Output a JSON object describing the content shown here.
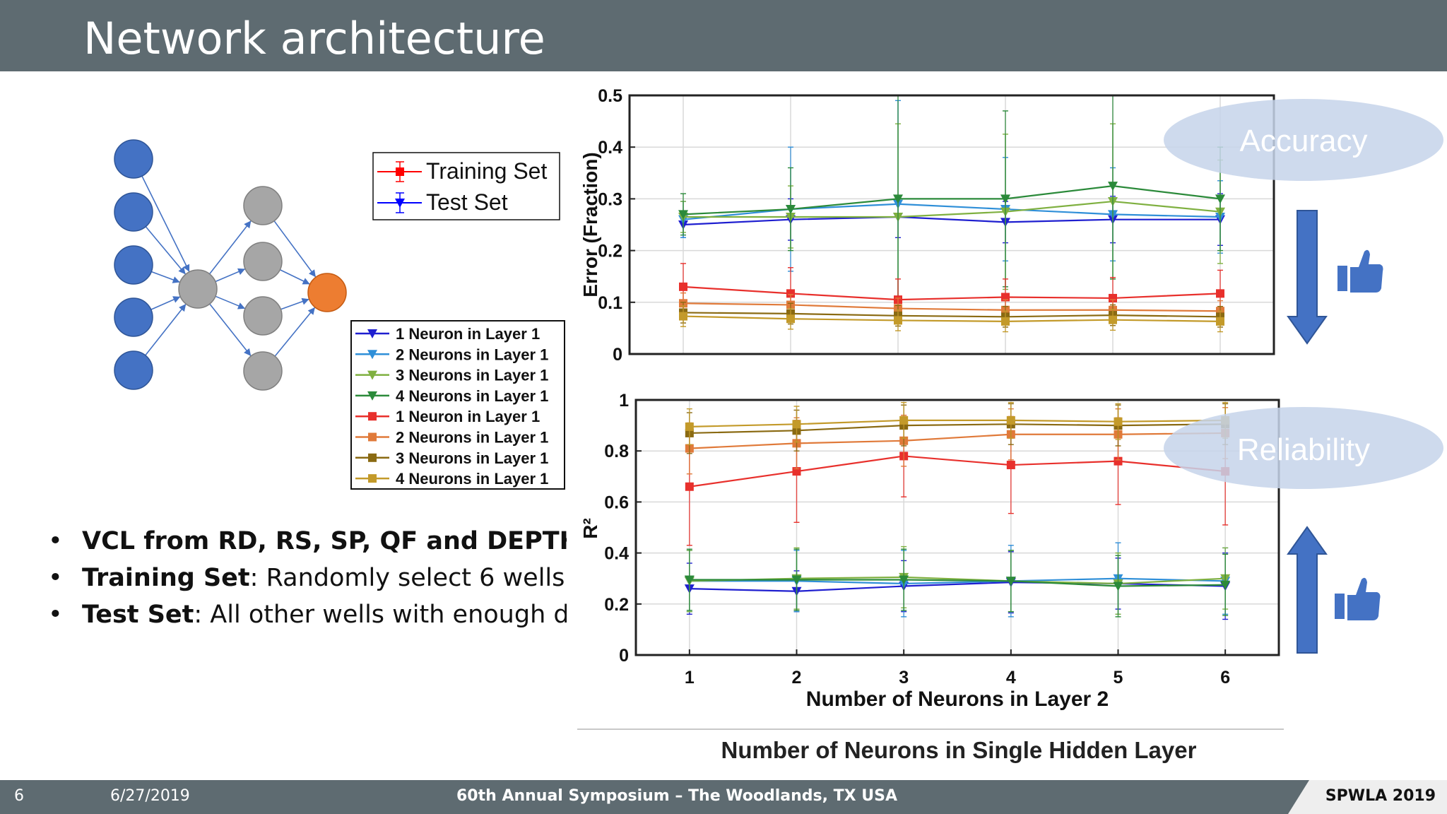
{
  "slide": {
    "title": "Network architecture",
    "page_number": "6",
    "date": "6/27/2019",
    "conference": "60th Annual Symposium – The Woodlands, TX USA",
    "brand": "SPWLA 2019"
  },
  "bullets": [
    {
      "bold": "VCL from RD, RS, SP, QF and DEPTH",
      "text": ""
    },
    {
      "bold": "Training Set",
      "text": ": Randomly select 6 wells"
    },
    {
      "bold": "Test Set",
      "text": ": All other wells with enough da"
    }
  ],
  "callouts": {
    "accuracy": "Accuracy",
    "reliability": "Reliability",
    "down_arrow_color": "#4472c4",
    "up_arrow_color": "#4472c4",
    "thumbs_icon": "thumbs-up-icon"
  },
  "diagram": {
    "input_color": "#4472c4",
    "hidden_color": "#a6a6a6",
    "output_color": "#ed7d31",
    "input_nodes": 5,
    "layer1_nodes": 1,
    "layer2_nodes": 4,
    "output_nodes": 1
  },
  "legend_small": [
    {
      "label": "Training Set",
      "color": "#ff0000",
      "marker": "square"
    },
    {
      "label": "Test Set",
      "color": "#0000ff",
      "marker": "triangle-down"
    }
  ],
  "chart_data": [
    {
      "type": "line",
      "x": [
        1,
        2,
        3,
        4,
        5,
        6
      ],
      "xlim": [
        0.5,
        6.5
      ],
      "ylim": [
        0,
        0.5
      ],
      "yticks": [
        0,
        0.1,
        0.2,
        0.3,
        0.4,
        0.5
      ],
      "ylabel": "Error (Fraction)",
      "xlabel": "",
      "grid": true,
      "series": [
        {
          "name": "1 Neuron in Layer 1",
          "color": "#1f1fd0",
          "marker": "triangle-down",
          "values": [
            0.25,
            0.26,
            0.265,
            0.255,
            0.26,
            0.26
          ],
          "err": [
            0.025,
            0.04,
            0.04,
            0.04,
            0.045,
            0.05
          ]
        },
        {
          "name": "2 Neurons in Layer 1",
          "color": "#2f8fd8",
          "marker": "triangle-down",
          "values": [
            0.26,
            0.28,
            0.29,
            0.28,
            0.27,
            0.265
          ],
          "err": [
            0.035,
            0.12,
            0.2,
            0.1,
            0.09,
            0.07
          ]
        },
        {
          "name": "3 Neurons in Layer 1",
          "color": "#7fb040",
          "marker": "triangle-down",
          "values": [
            0.265,
            0.265,
            0.265,
            0.275,
            0.295,
            0.275
          ],
          "err": [
            0.03,
            0.06,
            0.18,
            0.15,
            0.15,
            0.1
          ]
        },
        {
          "name": "4 Neurons in Layer 1",
          "color": "#2b8a3a",
          "marker": "triangle-down",
          "values": [
            0.27,
            0.28,
            0.3,
            0.3,
            0.325,
            0.3
          ],
          "err": [
            0.04,
            0.08,
            0.22,
            0.17,
            0.18,
            0.1
          ]
        },
        {
          "name": "1 Neuron in Layer 1",
          "color": "#e8302c",
          "marker": "square",
          "values": [
            0.13,
            0.117,
            0.105,
            0.11,
            0.108,
            0.117
          ],
          "err": [
            0.045,
            0.05,
            0.04,
            0.035,
            0.04,
            0.045
          ]
        },
        {
          "name": "2 Neurons in Layer 1",
          "color": "#e07a3a",
          "marker": "square",
          "values": [
            0.098,
            0.095,
            0.088,
            0.085,
            0.085,
            0.083
          ],
          "err": [
            0.02,
            0.02,
            0.02,
            0.02,
            0.02,
            0.02
          ]
        },
        {
          "name": "3 Neurons in Layer 1",
          "color": "#8a6a12",
          "marker": "square",
          "values": [
            0.08,
            0.078,
            0.074,
            0.072,
            0.075,
            0.072
          ],
          "err": [
            0.02,
            0.02,
            0.02,
            0.02,
            0.02,
            0.02
          ]
        },
        {
          "name": "4 Neurons in Layer 1",
          "color": "#c39a2a",
          "marker": "square",
          "values": [
            0.073,
            0.068,
            0.065,
            0.063,
            0.066,
            0.063
          ],
          "err": [
            0.02,
            0.02,
            0.02,
            0.02,
            0.02,
            0.02
          ]
        }
      ]
    },
    {
      "type": "line",
      "x": [
        1,
        2,
        3,
        4,
        5,
        6
      ],
      "xlim": [
        0.5,
        6.5
      ],
      "ylim": [
        0,
        1
      ],
      "yticks": [
        0,
        0.2,
        0.4,
        0.6,
        0.8,
        1
      ],
      "xticks": [
        "1",
        "2",
        "3",
        "4",
        "5",
        "6"
      ],
      "ylabel": "R²",
      "xlabel": "Number of Neurons in Layer 2",
      "grid": true,
      "series": [
        {
          "name": "1 Neuron in Layer 1",
          "color": "#1f1fd0",
          "marker": "triangle-down",
          "values": [
            0.26,
            0.25,
            0.27,
            0.285,
            0.28,
            0.27
          ],
          "err": [
            0.1,
            0.08,
            0.1,
            0.12,
            0.1,
            0.13
          ]
        },
        {
          "name": "2 Neurons in Layer 1",
          "color": "#2f8fd8",
          "marker": "triangle-down",
          "values": [
            0.29,
            0.29,
            0.28,
            0.29,
            0.3,
            0.29
          ],
          "err": [
            0.12,
            0.12,
            0.13,
            0.14,
            0.14,
            0.13
          ]
        },
        {
          "name": "3 Neurons in Layer 1",
          "color": "#7fb040",
          "marker": "triangle-down",
          "values": [
            0.29,
            0.3,
            0.305,
            0.29,
            0.28,
            0.3
          ],
          "err": [
            0.12,
            0.12,
            0.12,
            0.12,
            0.12,
            0.12
          ]
        },
        {
          "name": "4 Neurons in Layer 1",
          "color": "#2b8a3a",
          "marker": "triangle-down",
          "values": [
            0.295,
            0.295,
            0.295,
            0.29,
            0.27,
            0.275
          ],
          "err": [
            0.12,
            0.12,
            0.12,
            0.12,
            0.12,
            0.12
          ]
        },
        {
          "name": "1 Neuron in Layer 1",
          "color": "#e8302c",
          "marker": "square",
          "values": [
            0.66,
            0.72,
            0.78,
            0.745,
            0.76,
            0.72
          ],
          "err": [
            0.23,
            0.2,
            0.16,
            0.19,
            0.17,
            0.21
          ]
        },
        {
          "name": "2 Neurons in Layer 1",
          "color": "#e07a3a",
          "marker": "square",
          "values": [
            0.81,
            0.83,
            0.84,
            0.865,
            0.865,
            0.87
          ],
          "err": [
            0.1,
            0.1,
            0.1,
            0.1,
            0.1,
            0.1
          ]
        },
        {
          "name": "3 Neurons in Layer 1",
          "color": "#8a6a12",
          "marker": "square",
          "values": [
            0.87,
            0.88,
            0.9,
            0.905,
            0.9,
            0.905
          ],
          "err": [
            0.08,
            0.08,
            0.08,
            0.08,
            0.08,
            0.08
          ]
        },
        {
          "name": "4 Neurons in Layer 1",
          "color": "#c39a2a",
          "marker": "square",
          "values": [
            0.895,
            0.905,
            0.92,
            0.92,
            0.915,
            0.92
          ],
          "err": [
            0.07,
            0.07,
            0.07,
            0.07,
            0.07,
            0.07
          ]
        }
      ],
      "footer_label": "Number of Neurons in Single Hidden Layer"
    }
  ]
}
